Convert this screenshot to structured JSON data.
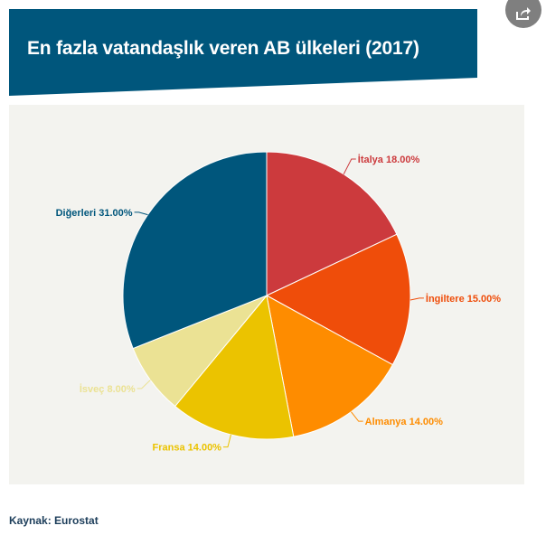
{
  "header": {
    "title": "En fazla vatandaşlık veren AB ülkeleri (2017)"
  },
  "share": {
    "icon": "share-icon"
  },
  "source": {
    "text": "Kaynak: Eurostat"
  },
  "chart_data": {
    "type": "pie",
    "title": "En fazla vatandaşlık veren AB ülkeleri (2017)",
    "slices": [
      {
        "label": "İtalya 18.00%",
        "name": "İtalya",
        "value": 18.0,
        "color": "#cc3a3d"
      },
      {
        "label": "İngiltere 15.00%",
        "name": "İngiltere",
        "value": 15.0,
        "color": "#ef4d0a"
      },
      {
        "label": "Almanya 14.00%",
        "name": "Almanya",
        "value": 14.0,
        "color": "#fe8c00"
      },
      {
        "label": "Fransa 14.00%",
        "name": "Fransa",
        "value": 14.0,
        "color": "#ebc300"
      },
      {
        "label": "İsveç 8.00%",
        "name": "İsveç",
        "value": 8.0,
        "color": "#ebe294"
      },
      {
        "label": "Diğerleri 31.00%",
        "name": "Diğerleri",
        "value": 31.0,
        "color": "#00567c"
      }
    ],
    "legend": "none",
    "labels": "outside-with-leader-lines"
  }
}
